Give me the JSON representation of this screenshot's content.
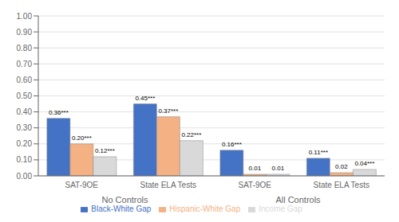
{
  "chart_data": {
    "type": "bar",
    "categories": [
      "SAT-9OE",
      "State ELA Tests",
      "SAT-9OE",
      "State ELA Tests"
    ],
    "series": [
      {
        "name": "Black-White Gap",
        "color": "#4472C4",
        "values": [
          0.36,
          0.45,
          0.16,
          0.11
        ],
        "value_labels": [
          "0.36***",
          "0.45***",
          "0.16***",
          "0.11***"
        ]
      },
      {
        "name": "Hispanic-White Gap",
        "color": "#F4B183",
        "values": [
          0.2,
          0.37,
          0.01,
          0.02
        ],
        "value_labels": [
          "0.20***",
          "0.37***",
          "0.01",
          "0.02"
        ]
      },
      {
        "name": "Income Gap",
        "color": "#D9D9D9",
        "values": [
          0.12,
          0.22,
          0.01,
          0.04
        ],
        "value_labels": [
          "0.12***",
          "0.22***",
          "0.01",
          "0.04***"
        ]
      }
    ],
    "annotations": [
      "No Controls",
      "All Controls"
    ],
    "ylim": [
      0.0,
      1.0
    ],
    "yticks": [
      {
        "value": 0.0,
        "label": "0.00"
      },
      {
        "value": 0.1,
        "label": "0.10"
      },
      {
        "value": 0.2,
        "label": "0.20"
      },
      {
        "value": 0.3,
        "label": "0.30"
      },
      {
        "value": 0.4,
        "label": "0.40"
      },
      {
        "value": 0.5,
        "label": "0.50"
      },
      {
        "value": 0.6,
        "label": "0.60"
      },
      {
        "value": 0.7,
        "label": "0.70"
      },
      {
        "value": 0.8,
        "label": "0.80"
      },
      {
        "value": 0.9,
        "label": "0.90"
      },
      {
        "value": 1.0,
        "label": "1.00"
      }
    ],
    "grid": true,
    "legend": "bottom",
    "data_labels": true
  }
}
